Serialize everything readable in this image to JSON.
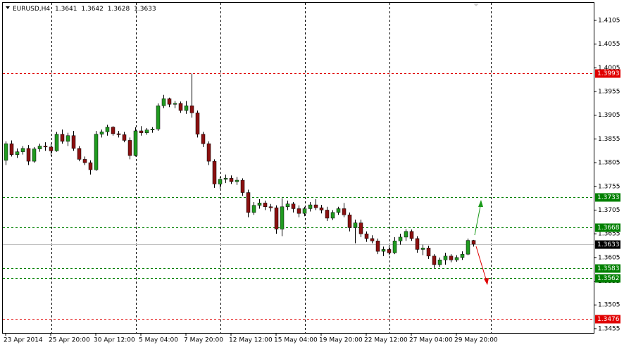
{
  "chart_data": {
    "type": "candlestick",
    "symbol": "EURUSD,H4",
    "categories": [
      "23 Apr 2014",
      null,
      null,
      null,
      null,
      null,
      null,
      null,
      "25 Apr 20:00",
      null,
      null,
      null,
      null,
      null,
      null,
      null,
      "30 Apr 12:00",
      null,
      null,
      null,
      null,
      null,
      null,
      null,
      "5 May 04:00",
      null,
      null,
      null,
      null,
      null,
      null,
      null,
      "7 May 20:00",
      null,
      null,
      null,
      null,
      null,
      null,
      null,
      "12 May 12:00",
      null,
      null,
      null,
      null,
      null,
      null,
      null,
      "15 May 04:00",
      null,
      null,
      null,
      null,
      null,
      null,
      null,
      "19 May 20:00",
      null,
      null,
      null,
      null,
      null,
      null,
      null,
      "22 May 12:00",
      null,
      null,
      null,
      null,
      null,
      null,
      null,
      "27 May 04:00",
      null,
      null,
      null,
      null,
      null,
      null,
      null,
      "29 May 20:00",
      null,
      null,
      null
    ],
    "open": [
      1.381,
      1.3845,
      1.3822,
      1.3828,
      1.3835,
      1.3808,
      1.3834,
      1.384,
      1.3838,
      1.383,
      1.3865,
      1.385,
      1.3862,
      1.3835,
      1.3812,
      1.3805,
      1.379,
      1.3865,
      1.387,
      1.388,
      1.3866,
      1.3864,
      1.3852,
      1.382,
      1.3872,
      1.3868,
      1.3874,
      1.3876,
      1.3925,
      1.394,
      1.3928,
      1.393,
      1.3915,
      1.3925,
      1.391,
      1.3865,
      1.3845,
      1.3808,
      1.376,
      1.377,
      1.3772,
      1.3765,
      1.3768,
      1.3742,
      1.37,
      1.3715,
      1.372,
      1.3712,
      1.371,
      1.3665,
      1.3712,
      1.3718,
      1.3708,
      1.3698,
      1.3708,
      1.3716,
      1.371,
      1.3705,
      1.3688,
      1.37,
      1.3708,
      1.3695,
      1.3668,
      1.3678,
      1.3655,
      1.3645,
      1.364,
      1.3618,
      1.3622,
      1.3615,
      1.364,
      1.3648,
      1.366,
      1.3645,
      1.3622,
      1.3625,
      1.3608,
      1.359,
      1.36,
      1.3608,
      1.36,
      1.3605,
      1.3612,
      1.3641
    ],
    "high": [
      1.385,
      1.3852,
      1.3835,
      1.384,
      1.3842,
      1.3838,
      1.3845,
      1.3848,
      1.3845,
      1.387,
      1.3875,
      1.3868,
      1.3872,
      1.384,
      1.3818,
      1.381,
      1.3872,
      1.3875,
      1.3885,
      1.3882,
      1.3872,
      1.387,
      1.3858,
      1.388,
      1.3882,
      1.3878,
      1.388,
      1.393,
      1.3948,
      1.3942,
      1.3935,
      1.3934,
      1.3935,
      1.3993,
      1.3915,
      1.387,
      1.385,
      1.3812,
      1.3775,
      1.378,
      1.3778,
      1.3775,
      1.3772,
      1.3748,
      1.3722,
      1.3728,
      1.3725,
      1.3718,
      1.3715,
      1.373,
      1.3725,
      1.3722,
      1.3715,
      1.3712,
      1.3722,
      1.3728,
      1.3716,
      1.3712,
      1.3705,
      1.3712,
      1.372,
      1.37,
      1.3685,
      1.3685,
      1.366,
      1.3652,
      1.3645,
      1.3628,
      1.363,
      1.3648,
      1.3655,
      1.3665,
      1.3664,
      1.365,
      1.3632,
      1.363,
      1.3612,
      1.3605,
      1.3615,
      1.3612,
      1.361,
      1.3618,
      1.3645,
      1.3642
    ],
    "low": [
      1.38,
      1.3818,
      1.3815,
      1.3822,
      1.38,
      1.3805,
      1.3828,
      1.383,
      1.382,
      1.3828,
      1.3845,
      1.384,
      1.383,
      1.3808,
      1.38,
      1.378,
      1.3788,
      1.3858,
      1.3862,
      1.3862,
      1.3858,
      1.3848,
      1.3812,
      1.3818,
      1.3862,
      1.3864,
      1.3868,
      1.3872,
      1.392,
      1.3922,
      1.392,
      1.391,
      1.3908,
      1.39,
      1.3858,
      1.3838,
      1.38,
      1.3752,
      1.375,
      1.3762,
      1.376,
      1.3758,
      1.3735,
      1.369,
      1.3695,
      1.3708,
      1.3705,
      1.3702,
      1.3655,
      1.365,
      1.3705,
      1.37,
      1.369,
      1.3692,
      1.3702,
      1.3705,
      1.3698,
      1.3682,
      1.3684,
      1.3695,
      1.369,
      1.366,
      1.3635,
      1.3648,
      1.3638,
      1.3635,
      1.3612,
      1.3608,
      1.361,
      1.3612,
      1.3632,
      1.364,
      1.364,
      1.3615,
      1.361,
      1.3602,
      1.3583,
      1.3585,
      1.359,
      1.3595,
      1.3596,
      1.36,
      1.361,
      1.3628
    ],
    "close": [
      1.3845,
      1.3822,
      1.3828,
      1.3835,
      1.3808,
      1.3834,
      1.384,
      1.3838,
      1.383,
      1.3865,
      1.385,
      1.3862,
      1.3835,
      1.3812,
      1.3805,
      1.379,
      1.3865,
      1.387,
      1.388,
      1.3866,
      1.3864,
      1.3852,
      1.382,
      1.3872,
      1.3868,
      1.3874,
      1.3876,
      1.3925,
      1.394,
      1.3928,
      1.393,
      1.3915,
      1.3925,
      1.391,
      1.3865,
      1.3845,
      1.3808,
      1.376,
      1.377,
      1.3772,
      1.3765,
      1.3768,
      1.3742,
      1.37,
      1.3715,
      1.372,
      1.3712,
      1.371,
      1.3665,
      1.3712,
      1.3718,
      1.3708,
      1.3698,
      1.3708,
      1.3716,
      1.371,
      1.3705,
      1.3688,
      1.37,
      1.3708,
      1.3695,
      1.3668,
      1.3678,
      1.3655,
      1.3645,
      1.364,
      1.3618,
      1.3622,
      1.3615,
      1.364,
      1.3648,
      1.366,
      1.3645,
      1.3622,
      1.3625,
      1.3608,
      1.359,
      1.36,
      1.3608,
      1.36,
      1.3605,
      1.3612,
      1.3641,
      1.3633
    ],
    "up_color": "#1f9a1f",
    "down_color": "#8b1010",
    "ylim": [
      1.3446,
      1.4148
    ],
    "yticks": [
      1.4105,
      1.4055,
      1.4005,
      1.3955,
      1.3905,
      1.3855,
      1.3805,
      1.3755,
      1.3705,
      1.3655,
      1.3605,
      1.3555,
      1.3505,
      1.3455
    ],
    "levels": [
      {
        "value": 1.3993,
        "color": "#e00000"
      },
      {
        "value": 1.3733,
        "color": "#008000"
      },
      {
        "value": 1.3668,
        "color": "#008000"
      },
      {
        "value": 1.3583,
        "color": "#008000"
      },
      {
        "value": 1.3562,
        "color": "#008000"
      },
      {
        "value": 1.3476,
        "color": "#e00000"
      }
    ],
    "bid": 1.3633
  }
}
